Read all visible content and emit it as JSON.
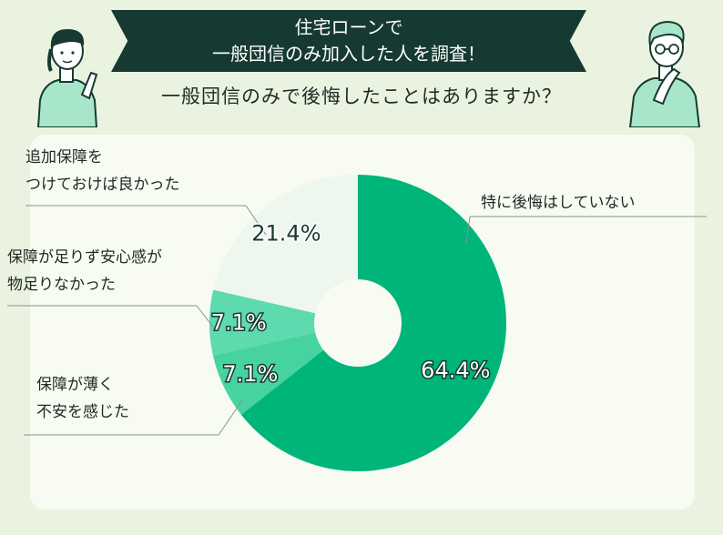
{
  "banner": {
    "line1": "住宅ローンで",
    "line2": "一般団信のみ加入した人を調査！"
  },
  "question": "一般団信のみで後悔したことはありますか？",
  "colors": {
    "background": "#eaf3df",
    "banner": "#163a31",
    "slice_main": "#00b57a",
    "slice_thin": "#5ddaae",
    "slice_anxious": "#47d39f",
    "slice_extra": "#edf7ee"
  },
  "chart_data": {
    "type": "pie",
    "title": "一般団信のみで後悔したことはありますか？",
    "slices": [
      {
        "label": "特に後悔はしていない",
        "label_lines": [
          "特に後悔はしていない"
        ],
        "value": 64.4,
        "value_label": "64.4%"
      },
      {
        "label": "保障が薄く不安を感じた",
        "label_lines": [
          "保障が薄く",
          "不安を感じた"
        ],
        "value": 7.1,
        "value_label": "7.1%"
      },
      {
        "label": "保障が足りず安心感が物足りなかった",
        "label_lines": [
          "保障が足りず安心感が",
          "物足りなかった"
        ],
        "value": 7.1,
        "value_label": "7.1%"
      },
      {
        "label": "追加保障をつけておけば良かった",
        "label_lines": [
          "追加保障を",
          "つけておけば良かった"
        ],
        "value": 21.4,
        "value_label": "21.4%"
      }
    ],
    "donut": true,
    "legend": "none"
  }
}
